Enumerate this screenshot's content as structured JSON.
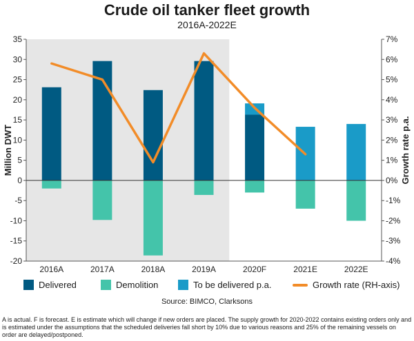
{
  "chart_data": {
    "type": "bar",
    "title": "Crude oil tanker fleet growth",
    "subtitle": "2016A-2022E",
    "ylabel": "Million DWT",
    "y2label": "Growth rate p.a.",
    "ylim": [
      -20,
      35
    ],
    "y2lim": [
      -4,
      7
    ],
    "yticks": [
      "35",
      "30",
      "25",
      "20",
      "15",
      "10",
      "5",
      "0",
      "-5",
      "-10",
      "-15",
      "-20"
    ],
    "y2ticks": [
      "7%",
      "6%",
      "5%",
      "4%",
      "3%",
      "2%",
      "1%",
      "0%",
      "-1%",
      "-2%",
      "-3%",
      "-4%"
    ],
    "categories": [
      "2016A",
      "2017A",
      "2018A",
      "2019A",
      "2020F",
      "2021E",
      "2022E"
    ],
    "shaded_categories": [
      "2016A",
      "2017A",
      "2018A",
      "2019A"
    ],
    "series": [
      {
        "name": "Delivered",
        "color": "#005a82",
        "values": [
          23.1,
          29.6,
          22.4,
          29.6,
          16.3,
          0,
          0
        ]
      },
      {
        "name": "Demolition",
        "color": "#44c4aa",
        "values": [
          -2.0,
          -9.8,
          -18.6,
          -3.6,
          -3.0,
          -7.0,
          -10.0
        ]
      },
      {
        "name": "To be delivered p.a.",
        "color": "#1a9bc8",
        "values": [
          0,
          0,
          0,
          0,
          2.8,
          13.3,
          14.0
        ]
      },
      {
        "name": "Growth rate (RH-axis)",
        "color": "#f28c28",
        "axis": "right",
        "type": "line",
        "values": [
          5.8,
          5.0,
          0.9,
          6.3,
          3.6,
          1.3,
          null
        ]
      }
    ],
    "grid": false,
    "legend": "bottom"
  },
  "source": "Source: BIMCO, Clarksons",
  "footnote": "A is actual. F is forecast. E is estimate which will change if new orders are placed. The supply growth for 2020-2022 contains existing orders only and is estimated under the assumptions that the scheduled deliveries fall short by 10% due to various reasons and 25% of the remaining vessels on order are delayed/postponed."
}
